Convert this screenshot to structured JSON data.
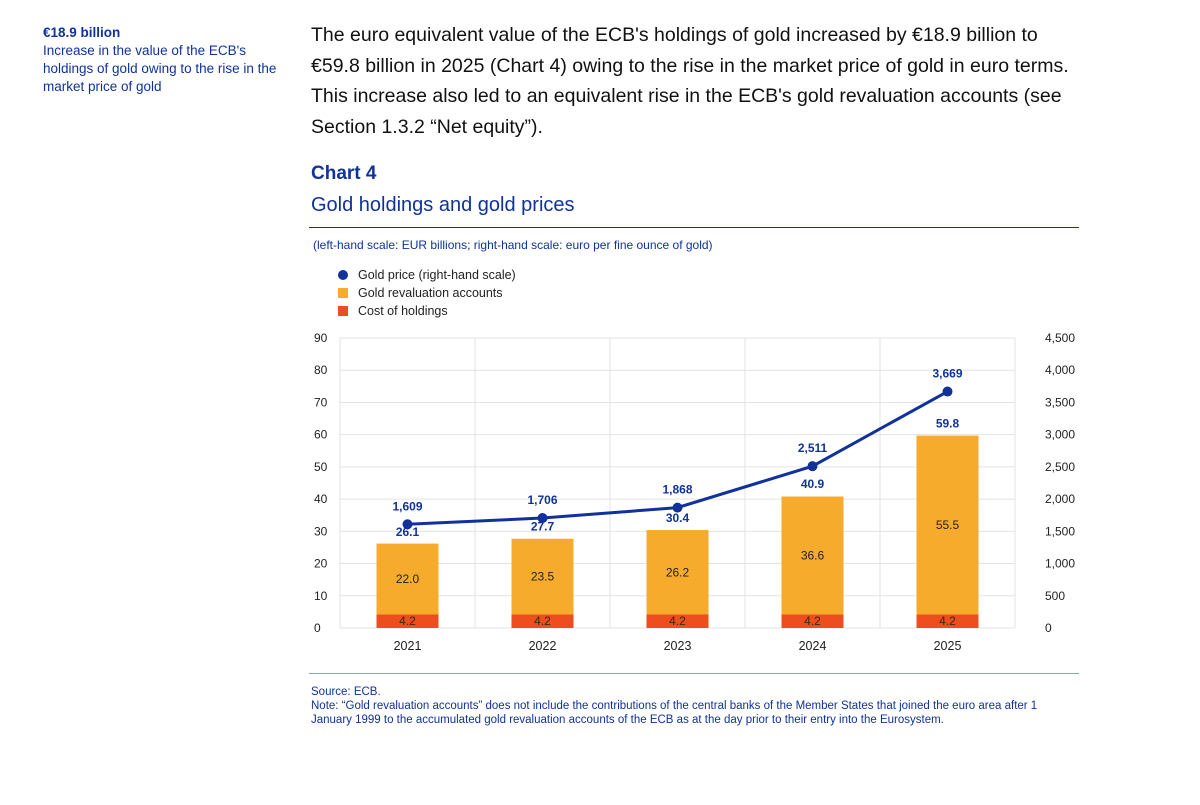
{
  "side_note": {
    "highlight": "€18.9 billion",
    "text": "Increase in the value of the ECB's holdings of gold owing to the rise in the market price of gold"
  },
  "lead_paragraph": "The euro equivalent value of the ECB's holdings of gold increased by €18.9 billion to €59.8 billion in 2025 (Chart 4) owing to the rise in the market price of gold in euro terms. This increase also led to an equivalent rise in the ECB's gold revaluation accounts (see Section 1.3.2 “Net equity”).",
  "chart_label": "Chart 4",
  "chart_data": {
    "type": "bar",
    "title": "Gold holdings and gold prices",
    "scale_note": "(left-hand scale: EUR billions; right-hand scale: euro per fine ounce of gold)",
    "categories": [
      "2021",
      "2022",
      "2023",
      "2024",
      "2025"
    ],
    "stacked": true,
    "series": [
      {
        "name": "Gold price (right-hand scale)",
        "type": "line",
        "axis": "right",
        "color": "#10329a",
        "values": [
          1609,
          1706,
          1868,
          2511,
          3669
        ]
      },
      {
        "name": "Gold revaluation accounts",
        "type": "bar",
        "axis": "left",
        "color": "#f7ab2d",
        "values": [
          22.0,
          23.5,
          26.2,
          36.6,
          55.5
        ]
      },
      {
        "name": "Cost of holdings",
        "type": "bar",
        "axis": "left",
        "color": "#ee4d1d",
        "values": [
          4.2,
          4.2,
          4.2,
          4.2,
          4.2
        ]
      }
    ],
    "bar_totals": [
      26.1,
      27.7,
      30.4,
      40.9,
      59.8
    ],
    "left_axis": {
      "min": 0,
      "max": 90,
      "ticks": [
        "0",
        "10",
        "20",
        "30",
        "40",
        "50",
        "60",
        "70",
        "80",
        "90"
      ]
    },
    "right_axis": {
      "min": 0,
      "max": 4500,
      "ticks": [
        "0",
        "500",
        "1,000",
        "1,500",
        "2,000",
        "2,500",
        "3,000",
        "3,500",
        "4,000",
        "4,500"
      ]
    },
    "grid": true
  },
  "source_note": {
    "source": "Source: ECB.",
    "note": "Note: “Gold revaluation accounts” does not include the contributions of the central banks of the Member States that joined the euro area after 1 January 1999 to the accumulated gold revaluation accounts of the ECB as at the day prior to their entry into the Eurosystem."
  }
}
